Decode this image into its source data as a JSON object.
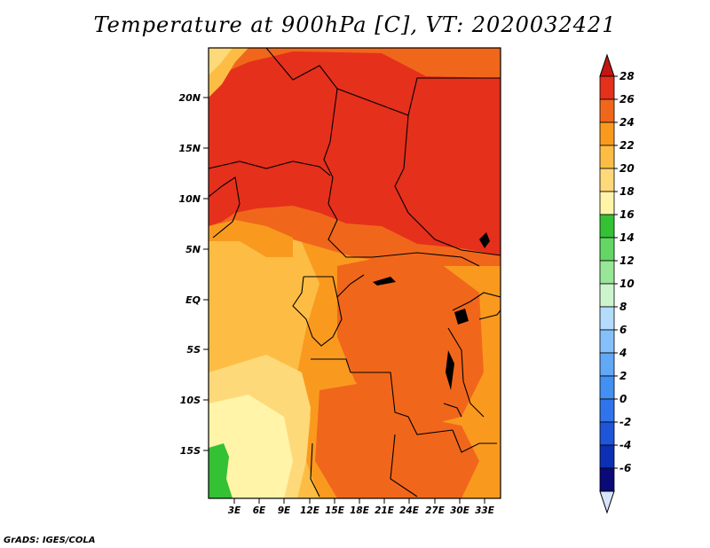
{
  "title": "Temperature at 900hPa [C], VT: 2020032421",
  "credit": "GrADS: IGES/COLA",
  "map": {
    "lat_labels": [
      "20N",
      "15N",
      "10N",
      "5N",
      "EQ",
      "5S",
      "10S",
      "15S"
    ],
    "lon_labels": [
      "3E",
      "6E",
      "9E",
      "12E",
      "15E",
      "18E",
      "21E",
      "24E",
      "27E",
      "30E",
      "33E"
    ]
  },
  "colorbar": {
    "levels": [
      "-6",
      "-4",
      "-2",
      "0",
      "2",
      "4",
      "6",
      "8",
      "10",
      "12",
      "14",
      "16",
      "18",
      "20",
      "22",
      "24",
      "26",
      "28"
    ],
    "colors": [
      "#0a0a78",
      "#0c2fb4",
      "#1f55d9",
      "#2f74ea",
      "#4291f2",
      "#61a8f7",
      "#86c0fa",
      "#b4dcfc",
      "#cdf5cd",
      "#98e698",
      "#64d664",
      "#34c134",
      "#fff4a8",
      "#fed97a",
      "#fdbd45",
      "#f99a1f",
      "#f0671b",
      "#e5301c",
      "#c21612"
    ],
    "under_color": "#d8e4fa"
  }
}
